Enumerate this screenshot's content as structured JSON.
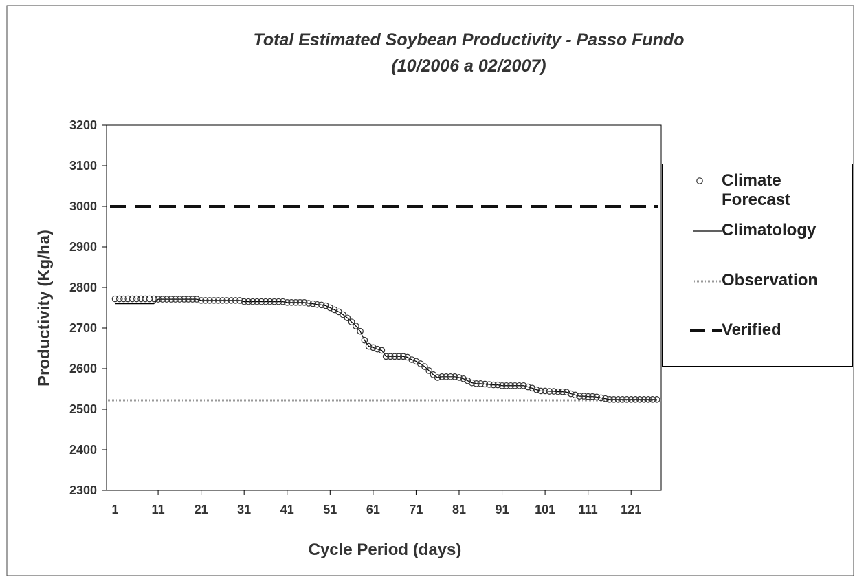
{
  "chart_data": {
    "type": "scatter-line",
    "title": "Total Estimated Soybean Productivity - Passo Fundo",
    "subtitle": "(10/2006 a 02/2007)",
    "x_label": "Cycle Period (days)",
    "y_label": "Productivity (Kg/ha)",
    "xlim": [
      -1,
      128
    ],
    "xticks": [
      1,
      11,
      21,
      31,
      41,
      51,
      61,
      71,
      81,
      91,
      101,
      111,
      121
    ],
    "ylim": [
      2300,
      3200
    ],
    "yticks": [
      2300,
      2400,
      2500,
      2600,
      2700,
      2800,
      2900,
      3000,
      3100,
      3200
    ],
    "x": [
      1,
      2,
      3,
      4,
      5,
      6,
      7,
      8,
      9,
      10,
      11,
      12,
      13,
      14,
      15,
      16,
      17,
      18,
      19,
      20,
      21,
      22,
      23,
      24,
      25,
      26,
      27,
      28,
      29,
      30,
      31,
      32,
      33,
      34,
      35,
      36,
      37,
      38,
      39,
      40,
      41,
      42,
      43,
      44,
      45,
      46,
      47,
      48,
      49,
      50,
      51,
      52,
      53,
      54,
      55,
      56,
      57,
      58,
      59,
      60,
      61,
      62,
      63,
      64,
      65,
      66,
      67,
      68,
      69,
      70,
      71,
      72,
      73,
      74,
      75,
      76,
      77,
      78,
      79,
      80,
      81,
      82,
      83,
      84,
      85,
      86,
      87,
      88,
      89,
      90,
      91,
      92,
      93,
      94,
      95,
      96,
      97,
      98,
      99,
      100,
      101,
      102,
      103,
      104,
      105,
      106,
      107,
      108,
      109,
      110,
      111,
      112,
      113,
      114,
      115,
      116,
      117,
      118,
      119,
      120,
      121,
      122,
      123,
      124,
      125,
      126,
      127
    ],
    "series": [
      {
        "name": "Climate Forecast",
        "style": "circles",
        "color": "#333333",
        "values": [
          2772,
          2772,
          2772,
          2772,
          2772,
          2772,
          2772,
          2772,
          2772,
          2772,
          2771,
          2771,
          2771,
          2771,
          2771,
          2771,
          2771,
          2771,
          2771,
          2771,
          2768,
          2768,
          2768,
          2768,
          2768,
          2768,
          2768,
          2768,
          2768,
          2768,
          2765,
          2765,
          2765,
          2765,
          2765,
          2765,
          2765,
          2765,
          2765,
          2765,
          2763,
          2763,
          2763,
          2763,
          2763,
          2761,
          2760,
          2758,
          2757,
          2755,
          2750,
          2745,
          2740,
          2733,
          2725,
          2715,
          2705,
          2692,
          2670,
          2655,
          2652,
          2648,
          2645,
          2630,
          2630,
          2630,
          2630,
          2630,
          2628,
          2622,
          2618,
          2612,
          2605,
          2595,
          2585,
          2578,
          2580,
          2580,
          2580,
          2580,
          2578,
          2575,
          2570,
          2565,
          2563,
          2563,
          2562,
          2561,
          2560,
          2560,
          2558,
          2558,
          2558,
          2558,
          2558,
          2558,
          2555,
          2552,
          2548,
          2545,
          2545,
          2544,
          2544,
          2543,
          2543,
          2542,
          2538,
          2535,
          2532,
          2532,
          2531,
          2531,
          2530,
          2528,
          2526,
          2524,
          2524,
          2524,
          2524,
          2524,
          2524,
          2524,
          2524,
          2524,
          2524,
          2524,
          2524
        ]
      },
      {
        "name": "Climatology",
        "style": "line",
        "color": "#000000",
        "values": [
          2760,
          2760,
          2760,
          2760,
          2760,
          2760,
          2760,
          2760,
          2760,
          2760,
          2771,
          2771,
          2771,
          2771,
          2771,
          2771,
          2771,
          2771,
          2771,
          2771,
          2768,
          2768,
          2768,
          2768,
          2768,
          2768,
          2768,
          2768,
          2768,
          2768,
          2765,
          2765,
          2765,
          2765,
          2765,
          2765,
          2765,
          2765,
          2765,
          2765,
          2763,
          2763,
          2763,
          2763,
          2763,
          2761,
          2760,
          2758,
          2757,
          2755,
          2750,
          2745,
          2740,
          2733,
          2725,
          2715,
          2705,
          2692,
          2670,
          2655,
          2652,
          2648,
          2645,
          2630,
          2630,
          2630,
          2630,
          2630,
          2628,
          2622,
          2618,
          2612,
          2605,
          2595,
          2585,
          2578,
          2580,
          2580,
          2580,
          2580,
          2578,
          2575,
          2570,
          2565,
          2563,
          2563,
          2562,
          2561,
          2560,
          2560,
          2558,
          2558,
          2558,
          2558,
          2558,
          2558,
          2555,
          2552,
          2548,
          2545,
          2545,
          2544,
          2544,
          2543,
          2543,
          2542,
          2538,
          2535,
          2532,
          2532,
          2531,
          2531,
          2530,
          2528,
          2526,
          2524,
          2524,
          2524,
          2524,
          2524,
          2524,
          2524,
          2524,
          2524,
          2524,
          2524,
          2524
        ]
      },
      {
        "name": "Observation",
        "style": "hline",
        "color": "#999999",
        "value": 2522
      },
      {
        "name": "Verified",
        "style": "hline-dashed",
        "color": "#111111",
        "value": 3000
      }
    ]
  }
}
